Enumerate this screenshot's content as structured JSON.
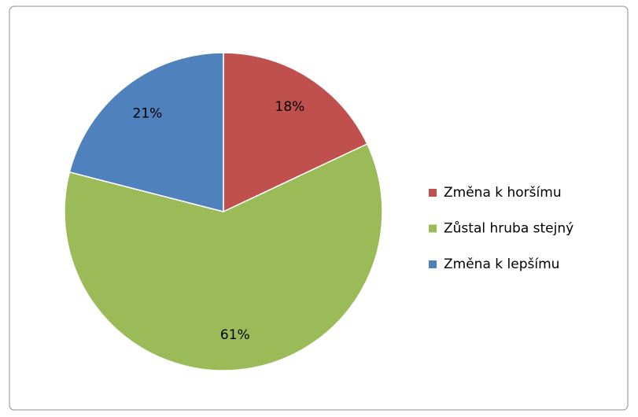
{
  "chart_data": {
    "type": "pie",
    "categories": [
      "Změna k horšímu",
      "Zůstal hruba stejný",
      "Změna k lepšímu"
    ],
    "values": [
      18,
      61,
      21
    ],
    "value_labels": [
      "18%",
      "61%",
      "21%"
    ],
    "colors": [
      "#c0504d",
      "#9bbb59",
      "#4f81bd"
    ],
    "legend": "right"
  }
}
